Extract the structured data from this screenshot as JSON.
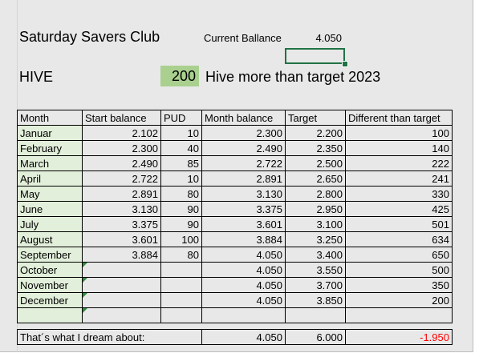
{
  "title": "Saturday Savers Club",
  "current_balance": {
    "label": "Current Ballance",
    "value": "4.050"
  },
  "hive": {
    "label": "HIVE",
    "amount": "200",
    "text": "Hive more than  target 2023"
  },
  "headers": {
    "month": "Month",
    "start": "Start balance",
    "pud": "PUD",
    "month_balance": "Month balance",
    "target": "Target",
    "diff": "Different than target"
  },
  "rows": [
    {
      "month": "Januar",
      "start": "2.102",
      "pud": "10",
      "mbal": "2.300",
      "target": "2.200",
      "diff": "100"
    },
    {
      "month": "February",
      "start": "2.300",
      "pud": "40",
      "mbal": "2.490",
      "target": "2.350",
      "diff": "140"
    },
    {
      "month": "March",
      "start": "2.490",
      "pud": "85",
      "mbal": "2.722",
      "target": "2.500",
      "diff": "222"
    },
    {
      "month": "April",
      "start": "2.722",
      "pud": "10",
      "mbal": "2.891",
      "target": "2.650",
      "diff": "241"
    },
    {
      "month": "May",
      "start": "2.891",
      "pud": "80",
      "mbal": "3.130",
      "target": "2.800",
      "diff": "330"
    },
    {
      "month": "June",
      "start": "3.130",
      "pud": "90",
      "mbal": "3.375",
      "target": "2.950",
      "diff": "425"
    },
    {
      "month": "July",
      "start": "3.375",
      "pud": "90",
      "mbal": "3.601",
      "target": "3.100",
      "diff": "501"
    },
    {
      "month": "August",
      "start": "3.601",
      "pud": "100",
      "mbal": "3.884",
      "target": "3.250",
      "diff": "634"
    },
    {
      "month": "September",
      "start": "3.884",
      "pud": "80",
      "mbal": "4.050",
      "target": "3.400",
      "diff": "650"
    },
    {
      "month": "October",
      "start": "",
      "pud": "",
      "mbal": "4.050",
      "target": "3.550",
      "diff": "500"
    },
    {
      "month": "November",
      "start": "",
      "pud": "",
      "mbal": "4.050",
      "target": "3.700",
      "diff": "350"
    },
    {
      "month": "December",
      "start": "",
      "pud": "",
      "mbal": "4.050",
      "target": "3.850",
      "diff": "200"
    },
    {
      "month": "",
      "start": "",
      "pud": "",
      "mbal": "",
      "target": "",
      "diff": ""
    }
  ],
  "dream": {
    "label": "That´s what I dream about:",
    "mbal": "4.050",
    "target": "6.000",
    "diff": "-1.950"
  },
  "colors": {
    "month_fill": "#e2efda",
    "hive_fill": "#a9d08e",
    "selection": "#217346",
    "negative": "#ff0000"
  }
}
